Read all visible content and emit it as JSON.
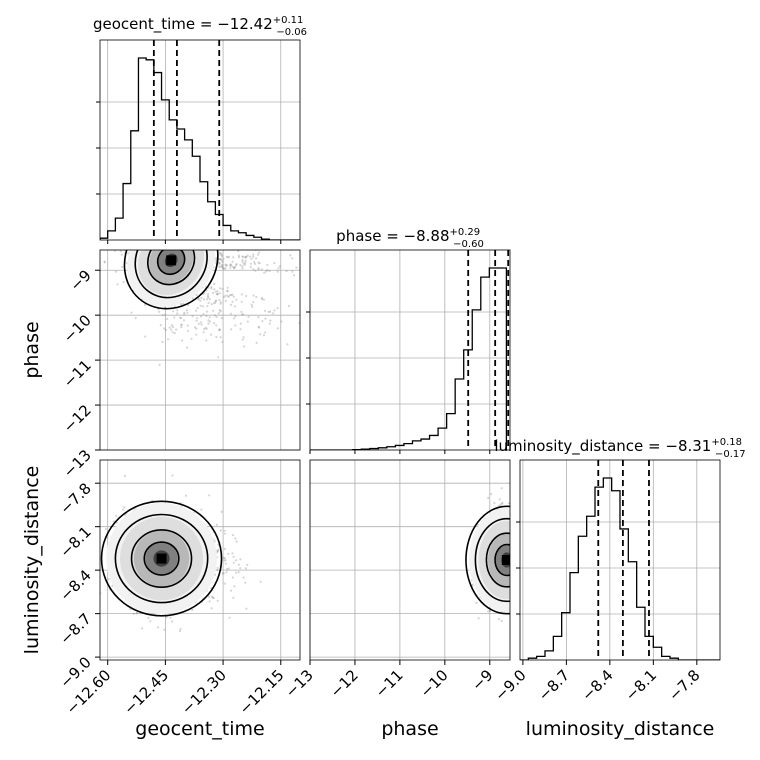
{
  "chart_data": {
    "type": "corner",
    "parameters": [
      "geocent_time",
      "phase",
      "luminosity_distance"
    ],
    "grid": true,
    "colors": {
      "line": "#000000",
      "median_lines": "#000000",
      "grid": "#b0b0b0",
      "points": "#888888"
    },
    "axes": {
      "geocent_time": {
        "range": [
          -12.62,
          -12.1
        ],
        "ticks": [
          -12.6,
          -12.45,
          -12.3,
          -12.15
        ],
        "tick_labels": [
          "−12.60",
          "−12.45",
          "−12.30",
          "−12.15"
        ]
      },
      "phase": {
        "range": [
          -13.0,
          -8.55
        ],
        "ticks": [
          -13,
          -12,
          -11,
          -10,
          -9
        ],
        "tick_labels": [
          "−13",
          "−12",
          "−11",
          "−10",
          "−9"
        ]
      },
      "luminosity_distance": {
        "range": [
          -9.02,
          -7.64
        ],
        "ticks": [
          -9.0,
          -8.7,
          -8.4,
          -8.1,
          -7.8
        ],
        "tick_labels": [
          "−9.0",
          "−8.7",
          "−8.4",
          "−8.1",
          "−7.8"
        ]
      }
    },
    "titles": [
      {
        "param": "geocent_time",
        "text": "geocent_time = −12.42",
        "sup": "+0.11",
        "sub": "−0.06"
      },
      {
        "param": "phase",
        "text": "phase = −8.88",
        "sup": "+0.29",
        "sub": "−0.60"
      },
      {
        "param": "luminosity_distance",
        "text": "luminosity_distance = −8.31",
        "sup": "+0.18",
        "sub": "−0.17"
      }
    ],
    "quantiles": {
      "geocent_time": [
        -12.48,
        -12.42,
        -12.31
      ],
      "phase": [
        -9.48,
        -8.88,
        -8.59
      ],
      "luminosity_distance": [
        -8.48,
        -8.31,
        -8.13
      ]
    },
    "histograms": {
      "geocent_time": {
        "edges_start": -12.62,
        "bin_width": 0.02,
        "counts": [
          0.01,
          0.05,
          0.12,
          0.31,
          0.6,
          1.0,
          0.99,
          0.92,
          0.77,
          0.66,
          0.61,
          0.55,
          0.46,
          0.32,
          0.21,
          0.14,
          0.08,
          0.05,
          0.04,
          0.025,
          0.015,
          0.005,
          0.0,
          0.0,
          0.0,
          0.0
        ]
      },
      "phase": {
        "edges_start": -13.0,
        "bin_width": 0.19,
        "counts": [
          0,
          0,
          0,
          0,
          0,
          0.002,
          0.005,
          0.008,
          0.012,
          0.018,
          0.025,
          0.035,
          0.05,
          0.06,
          0.08,
          0.12,
          0.2,
          0.39,
          0.55,
          0.77,
          0.95,
          1.0,
          1.0
        ]
      },
      "luminosity_distance": {
        "edges_start": -9.02,
        "bin_width": 0.0575,
        "counts": [
          0.0,
          0.01,
          0.02,
          0.05,
          0.13,
          0.26,
          0.48,
          0.68,
          0.79,
          0.95,
          1.0,
          0.93,
          0.72,
          0.54,
          0.29,
          0.13,
          0.07,
          0.02,
          0.01,
          0.0,
          0.0,
          0.0,
          0.0,
          0.0
        ]
      }
    },
    "pair_peaks": {
      "phase_vs_geocent_time": {
        "x": -12.435,
        "y": -8.78
      },
      "luminosity_distance_vs_geocent_time": {
        "x": -12.46,
        "y": -8.32
      },
      "luminosity_distance_vs_phase": {
        "x": -8.62,
        "y": -8.33
      }
    },
    "xlabels": [
      "geocent_time",
      "phase",
      "luminosity_distance"
    ],
    "ylabels": [
      "phase",
      "luminosity_distance"
    ]
  }
}
